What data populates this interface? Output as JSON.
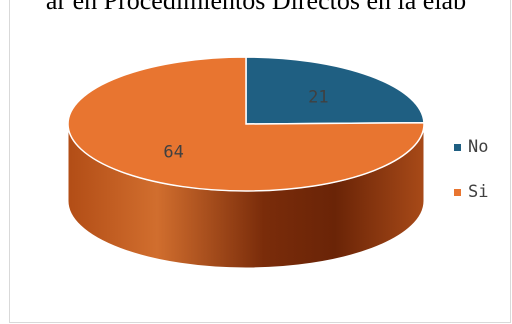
{
  "title": "ar en Procedimientos Directos en la elab",
  "chart_data": {
    "type": "pie",
    "style": "3d",
    "categories": [
      "No",
      "Si"
    ],
    "values": [
      21,
      64
    ],
    "colors": [
      "#1f5f82",
      "#e87530"
    ],
    "legend": "right"
  },
  "legend": [
    {
      "label": "No",
      "color": "#1f5f82"
    },
    {
      "label": "Si",
      "color": "#e87530"
    }
  ],
  "labels": [
    "21",
    "64"
  ]
}
